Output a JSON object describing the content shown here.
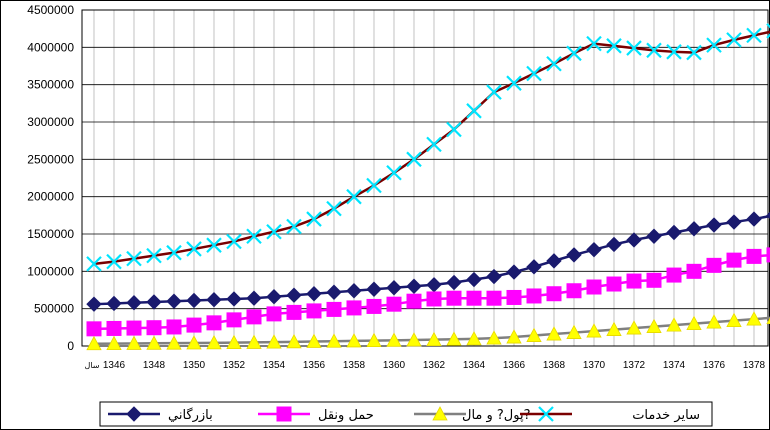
{
  "chart_data": {
    "type": "line",
    "xlabel": "سال",
    "x_first_label": "سال",
    "x": [
      1345,
      1346,
      1347,
      1348,
      1349,
      1350,
      1351,
      1352,
      1353,
      1354,
      1355,
      1356,
      1357,
      1358,
      1359,
      1360,
      1361,
      1362,
      1363,
      1364,
      1365,
      1366,
      1367,
      1368,
      1369,
      1370,
      1371,
      1372,
      1373,
      1374,
      1375,
      1376,
      1377,
      1378,
      1379
    ],
    "x_tick_labels": [
      "1346",
      "1348",
      "1350",
      "1352",
      "1354",
      "1356",
      "1358",
      "1360",
      "1362",
      "1364",
      "1366",
      "1368",
      "1370",
      "1372",
      "1374",
      "1376",
      "1378"
    ],
    "ylim": [
      0,
      4500000
    ],
    "y_ticks": [
      "0",
      "500000",
      "1000000",
      "1500000",
      "2000000",
      "2500000",
      "3000000",
      "3500000",
      "4000000",
      "4500000"
    ],
    "grid": true,
    "legend_position": "bottom",
    "series": [
      {
        "name": "بازرگاني",
        "color": "#1a1a6e",
        "marker": "diamond",
        "values": [
          560000,
          570000,
          580000,
          590000,
          600000,
          610000,
          620000,
          630000,
          640000,
          660000,
          680000,
          700000,
          720000,
          740000,
          760000,
          780000,
          800000,
          820000,
          850000,
          890000,
          930000,
          990000,
          1060000,
          1140000,
          1220000,
          1290000,
          1360000,
          1420000,
          1470000,
          1520000,
          1570000,
          1620000,
          1660000,
          1700000,
          1750000
        ]
      },
      {
        "name": "حمل ونقل",
        "color": "#ff00ff",
        "marker": "square",
        "values": [
          230000,
          235000,
          240000,
          245000,
          255000,
          280000,
          310000,
          350000,
          390000,
          430000,
          450000,
          470000,
          490000,
          510000,
          530000,
          560000,
          600000,
          630000,
          640000,
          640000,
          640000,
          650000,
          670000,
          700000,
          740000,
          790000,
          830000,
          870000,
          880000,
          950000,
          1000000,
          1080000,
          1150000,
          1200000,
          1220000
        ]
      },
      {
        "name": "پول? و مال?",
        "color": "#808080",
        "marker": "triangle",
        "values": [
          30000,
          32000,
          34000,
          36000,
          38000,
          40000,
          42000,
          45000,
          48000,
          52000,
          56000,
          60000,
          64000,
          68000,
          72000,
          76000,
          80000,
          85000,
          90000,
          95000,
          105000,
          120000,
          140000,
          160000,
          180000,
          200000,
          220000,
          240000,
          260000,
          280000,
          300000,
          320000,
          340000,
          360000,
          380000
        ]
      },
      {
        "name": "ساير خدمات",
        "color": "#00e5ff",
        "line_color": "#7a0000",
        "marker": "x",
        "values": [
          1100000,
          1130000,
          1170000,
          1210000,
          1250000,
          1300000,
          1350000,
          1400000,
          1470000,
          1530000,
          1600000,
          1700000,
          1840000,
          2000000,
          2150000,
          2320000,
          2500000,
          2700000,
          2900000,
          3150000,
          3400000,
          3520000,
          3650000,
          3780000,
          3920000,
          4050000,
          4020000,
          3990000,
          3960000,
          3940000,
          3930000,
          4030000,
          4100000,
          4160000,
          4220000
        ]
      }
    ]
  }
}
